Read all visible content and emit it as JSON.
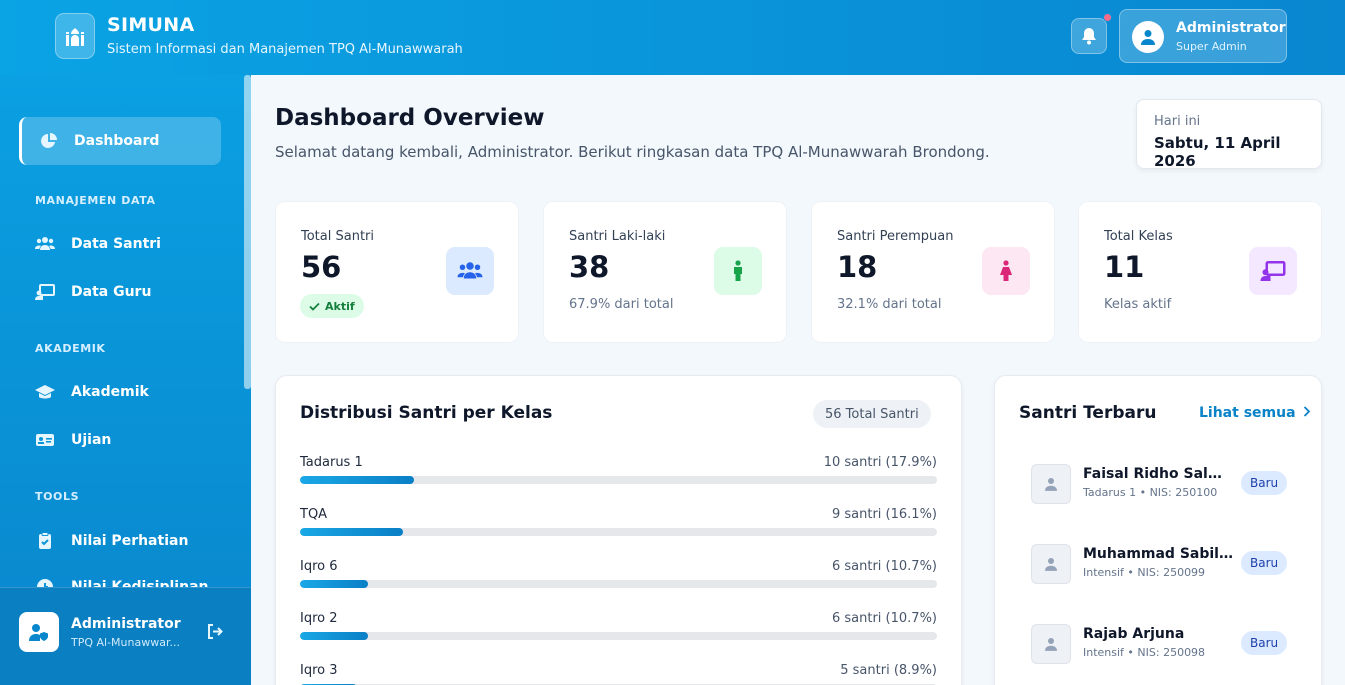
{
  "header": {
    "app_name": "SIMUNA",
    "app_subtitle": "Sistem Informasi dan Manajemen TPQ Al-Munawwarah",
    "user_name": "Administrator",
    "user_role": "Super Admin",
    "logo_icon": "mosque-icon",
    "bell_icon": "bell-icon"
  },
  "sidebar": {
    "active_item": {
      "label": "Dashboard",
      "icon": "chart-pie-icon"
    },
    "sections": [
      {
        "title": "MANAJEMEN DATA",
        "items": [
          {
            "label": "Data Santri",
            "icon": "users-icon"
          },
          {
            "label": "Data Guru",
            "icon": "chalkboard-teacher-icon"
          }
        ]
      },
      {
        "title": "AKADEMIK",
        "items": [
          {
            "label": "Akademik",
            "icon": "graduation-cap-icon"
          },
          {
            "label": "Ujian",
            "icon": "id-card-icon"
          }
        ]
      },
      {
        "title": "TOOLS",
        "items": [
          {
            "label": "Nilai Perhatian",
            "icon": "clipboard-check-icon"
          },
          {
            "label": "Nilai Kedisiplinan",
            "icon": "clock-icon"
          }
        ]
      }
    ],
    "footer": {
      "name": "Administrator",
      "org": "TPQ Al-Munawwar...",
      "logout_icon": "logout-icon"
    }
  },
  "main": {
    "title": "Dashboard Overview",
    "subtitle": "Selamat datang kembali, Administrator. Berikut ringkasan data TPQ Al-Munawwarah Brondong.",
    "date_label": "Hari ini",
    "date_value": "Sabtu, 11 April 2026",
    "stats": [
      {
        "label": "Total Santri",
        "value": "56",
        "badge": "Aktif",
        "icon": "users-icon",
        "icon_bg": "#dbeafe",
        "icon_color": "#2563eb"
      },
      {
        "label": "Santri Laki-laki",
        "value": "38",
        "note": "67.9% dari total",
        "icon": "male-icon",
        "icon_bg": "#dcfce7",
        "icon_color": "#16a34a"
      },
      {
        "label": "Santri Perempuan",
        "value": "18",
        "note": "32.1% dari total",
        "icon": "female-icon",
        "icon_bg": "#fce7f3",
        "icon_color": "#db2777"
      },
      {
        "label": "Total Kelas",
        "value": "11",
        "note": "Kelas aktif",
        "icon": "chalkboard-teacher-icon",
        "icon_bg": "#f3e8ff",
        "icon_color": "#9333ea"
      }
    ],
    "distribution": {
      "title": "Distribusi Santri per Kelas",
      "total_badge": "56 Total Santri",
      "rows": [
        {
          "name": "Tadarus 1",
          "count": "10 santri (17.9%)",
          "percent": 17.9
        },
        {
          "name": "TQA",
          "count": "9 santri (16.1%)",
          "percent": 16.1
        },
        {
          "name": "Iqro 6",
          "count": "6 santri (10.7%)",
          "percent": 10.7
        },
        {
          "name": "Iqro 2",
          "count": "6 santri (10.7%)",
          "percent": 10.7
        },
        {
          "name": "Iqro 3",
          "count": "5 santri (8.9%)",
          "percent": 8.9
        }
      ]
    },
    "recent": {
      "title": "Santri Terbaru",
      "link": "Lihat semua",
      "items": [
        {
          "name": "Faisal Ridho Salman",
          "meta": "Tadarus 1 • NIS: 250100",
          "badge": "Baru"
        },
        {
          "name": "Muhammad Sabil ...",
          "meta": "Intensif • NIS: 250099",
          "badge": "Baru"
        },
        {
          "name": "Rajab Arjuna",
          "meta": "Intensif • NIS: 250098",
          "badge": "Baru"
        }
      ]
    }
  }
}
